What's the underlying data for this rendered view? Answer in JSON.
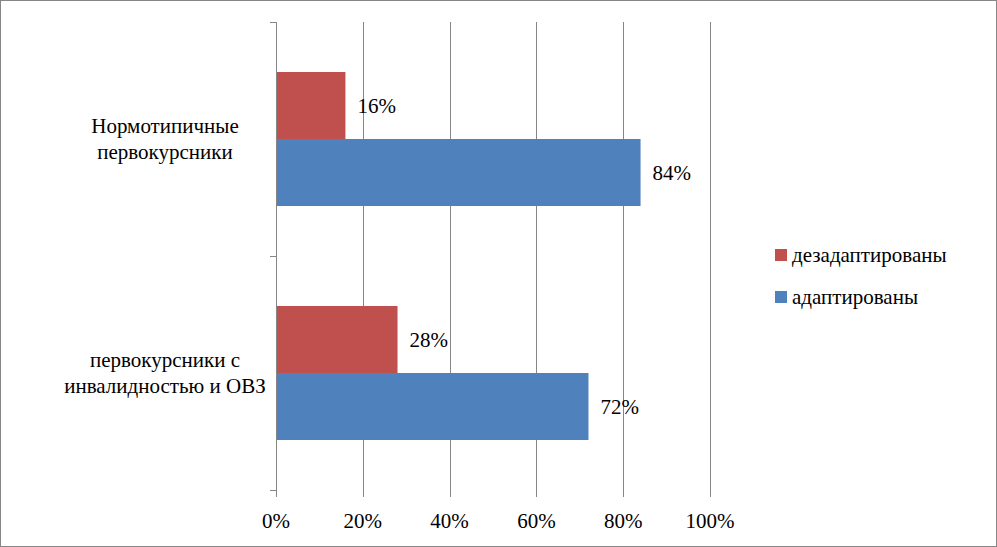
{
  "chart_data": {
    "type": "bar",
    "orientation": "horizontal",
    "categories": [
      "Нормотипичные первокурсники",
      "первокурсники с инвалидностью и ОВЗ"
    ],
    "series": [
      {
        "name": "дезадаптированы",
        "color": "#c0504d",
        "values": [
          16,
          28
        ],
        "value_labels": [
          "16%",
          "28%"
        ]
      },
      {
        "name": "адаптированы",
        "color": "#4f81bd",
        "values": [
          84,
          72
        ],
        "value_labels": [
          "84%",
          "72%"
        ]
      }
    ],
    "xlim": [
      0,
      100
    ],
    "xticks": [
      {
        "value": 0,
        "label": "0%"
      },
      {
        "value": 20,
        "label": "20%"
      },
      {
        "value": 40,
        "label": "40%"
      },
      {
        "value": 60,
        "label": "60%"
      },
      {
        "value": 80,
        "label": "80%"
      },
      {
        "value": 100,
        "label": "100%"
      }
    ],
    "grid": true,
    "legend": "right",
    "data_labels": true
  }
}
